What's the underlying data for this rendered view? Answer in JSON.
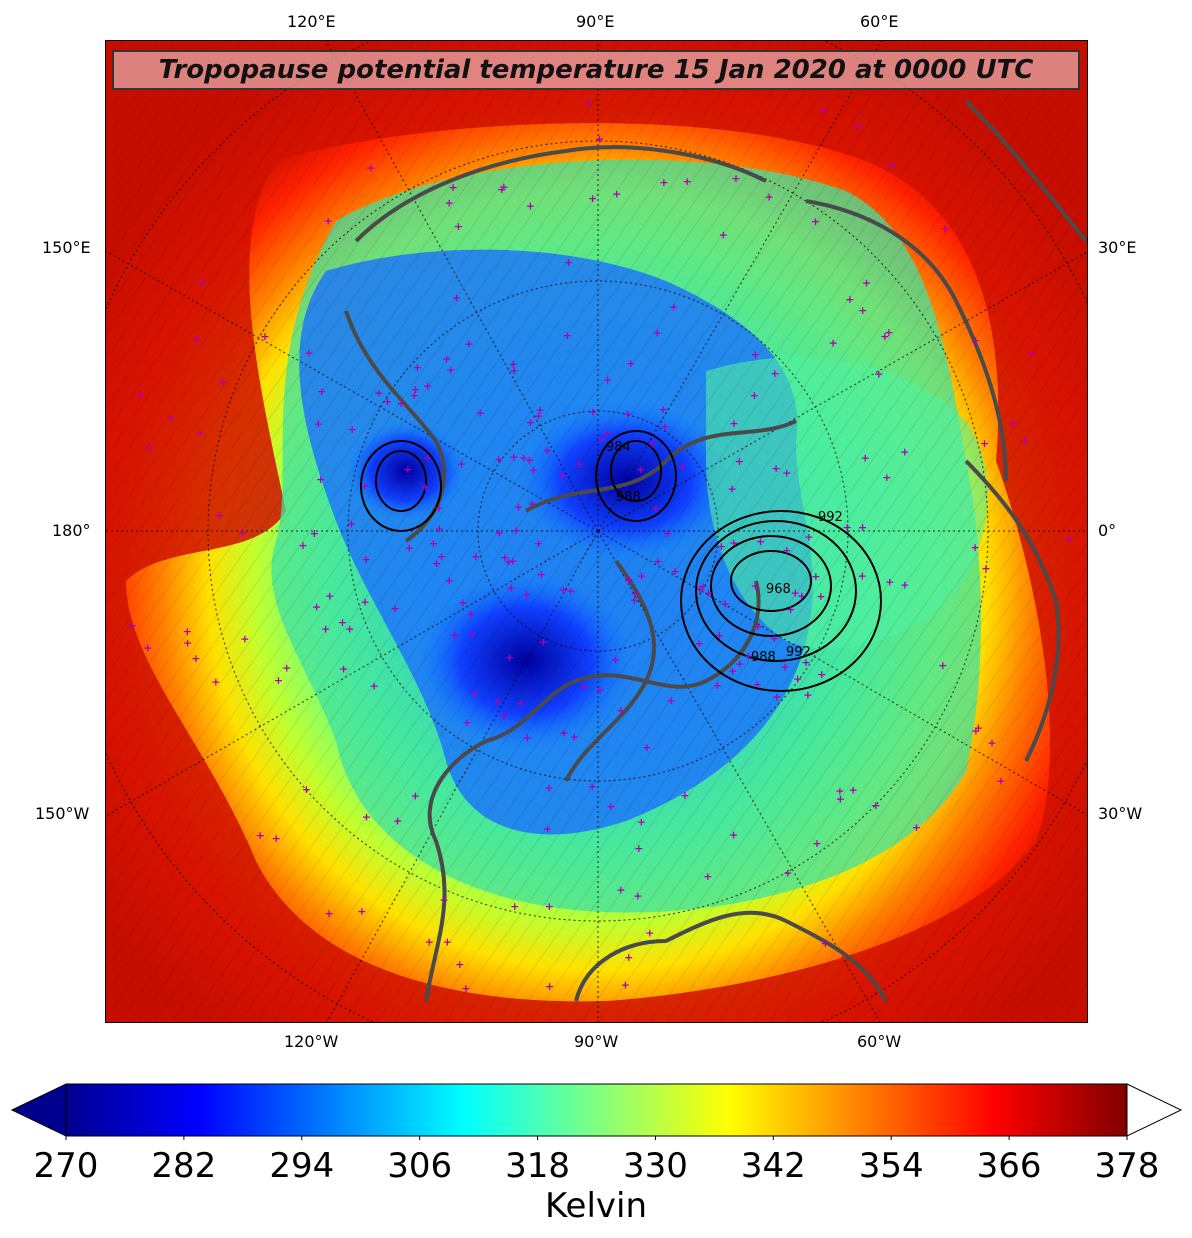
{
  "title": "Tropopause potential temperature 15 Jan 2020 at 0000 UTC",
  "map": {
    "projection": "north-polar-stereographic",
    "fill_field": "tropopause potential temperature",
    "overlay": "sea level pressure contours (hPa)",
    "marker_color": "#b000b0",
    "coastline_color": "#4a4a4a",
    "pressure_labels": [
      "984",
      "988",
      "992",
      "968",
      "988",
      "992"
    ]
  },
  "lon_labels": {
    "top": [
      "120°E",
      "90°E",
      "60°E"
    ],
    "bottom": [
      "120°W",
      "90°W",
      "60°W"
    ],
    "left": [
      "150°E",
      "180°",
      "150°W"
    ],
    "right": [
      "30°E",
      "0°",
      "30°W"
    ]
  },
  "colorbar": {
    "ticks": [
      "270",
      "282",
      "294",
      "306",
      "318",
      "330",
      "342",
      "354",
      "366",
      "378"
    ],
    "label": "Kelvin",
    "min": 270,
    "max": 378,
    "extend": "both",
    "colors": [
      "#00008f",
      "#0000ff",
      "#0080ff",
      "#00ffff",
      "#80ff80",
      "#ffff00",
      "#ff8000",
      "#ff0000",
      "#800000"
    ]
  }
}
